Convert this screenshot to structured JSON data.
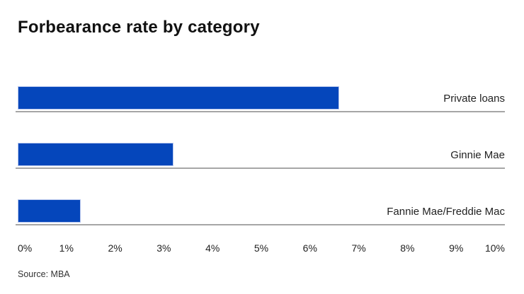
{
  "title": "Forbearance rate by category",
  "source": "Source: MBA",
  "colors": {
    "bar": "#0546bb",
    "bar_border": "#b9c8ee",
    "separator_line": "#a6a6a6",
    "title": "#111111",
    "label": "#222222"
  },
  "chart_data": {
    "type": "bar",
    "orientation": "horizontal",
    "title": "Forbearance rate by category",
    "categories": [
      "Private loans",
      "Ginnie Mae",
      "Fannie Mae/Freddie Mac"
    ],
    "values": [
      6.6,
      3.2,
      1.3
    ],
    "unit": "%",
    "xlabel": "",
    "ylabel": "",
    "xlim": [
      0,
      10
    ],
    "x_ticks": [
      "0%",
      "1%",
      "2%",
      "3%",
      "4%",
      "5%",
      "6%",
      "7%",
      "8%",
      "9%",
      "10%"
    ],
    "grid": false,
    "legend": "none",
    "source": "Source: MBA"
  }
}
